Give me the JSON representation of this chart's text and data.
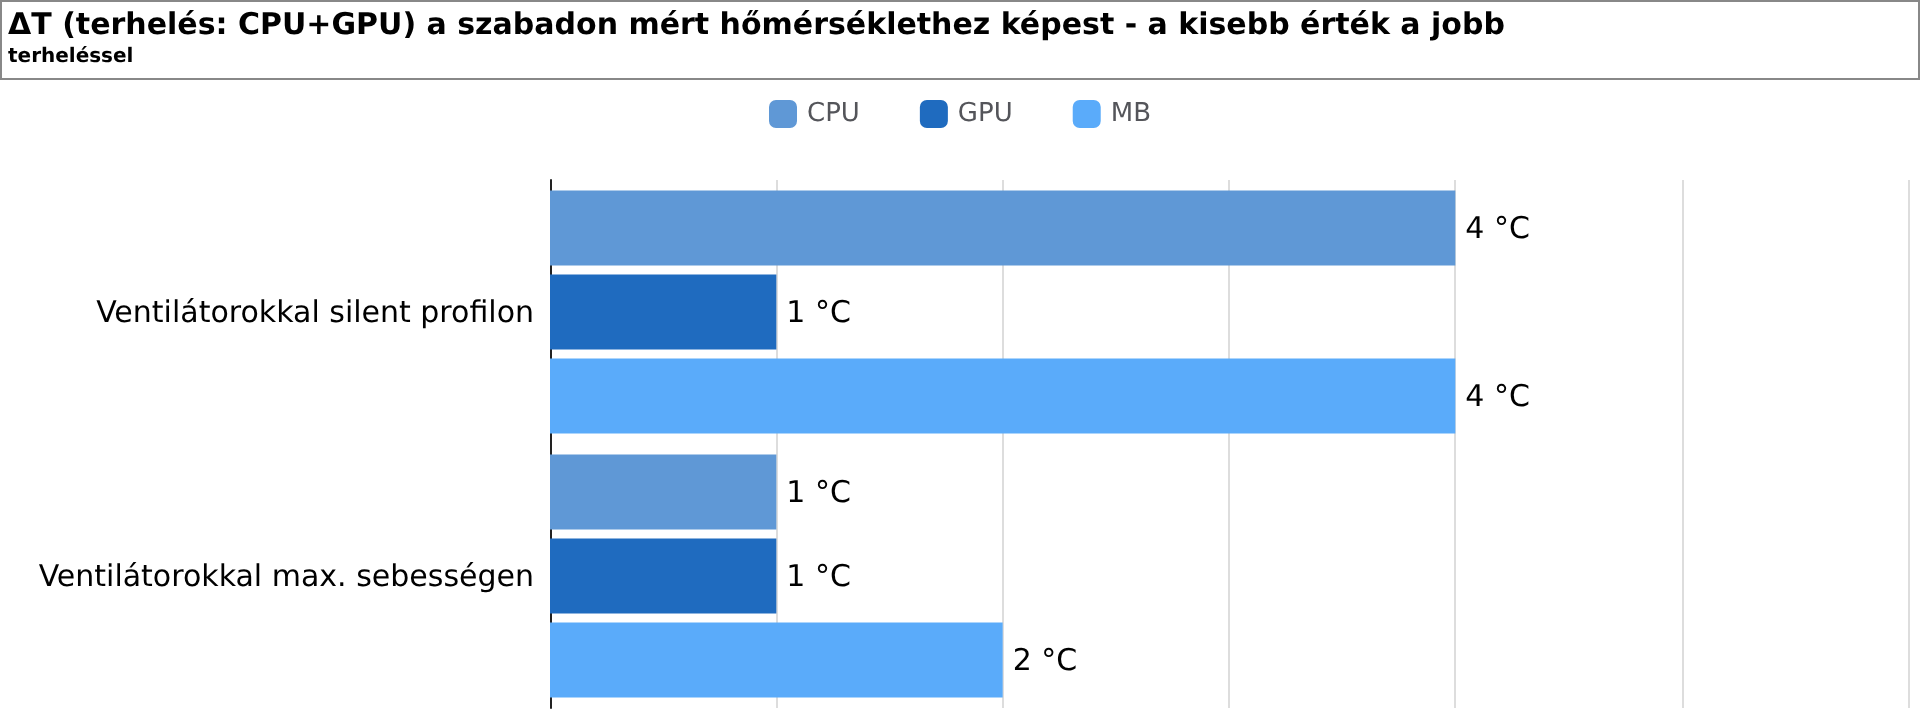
{
  "chart_data": {
    "type": "bar",
    "orientation": "horizontal",
    "title": "ΔT (terhelés: CPU+GPU) a szabadon mért hőmérséklethez képest - a kisebb érték a jobb",
    "subtitle": "terheléssel",
    "categories": [
      "Ventilátorokkal silent profilon",
      "Ventilátorokkal max. sebességen"
    ],
    "series": [
      {
        "name": "CPU",
        "color": "#5f98d6",
        "values": [
          4,
          1
        ],
        "value_labels": [
          "4 °C",
          "1 °C"
        ]
      },
      {
        "name": "GPU",
        "color": "#1f6bbf",
        "values": [
          1,
          1
        ],
        "value_labels": [
          "1 °C",
          "1 °C"
        ]
      },
      {
        "name": "MB",
        "color": "#5aabfa",
        "values": [
          4,
          2
        ],
        "value_labels": [
          "4 °C",
          "2 °C"
        ]
      }
    ],
    "xlim": [
      0,
      6
    ],
    "xticks": [
      {
        "value": 0,
        "label": null
      },
      {
        "value": 1,
        "label": null
      },
      {
        "value": 2,
        "label": null
      },
      {
        "value": 3,
        "label": null
      },
      {
        "value": 4,
        "label": null
      },
      {
        "value": 5,
        "label": null
      },
      {
        "value": 6,
        "label": null
      }
    ],
    "grid": "x",
    "legend": "top"
  }
}
